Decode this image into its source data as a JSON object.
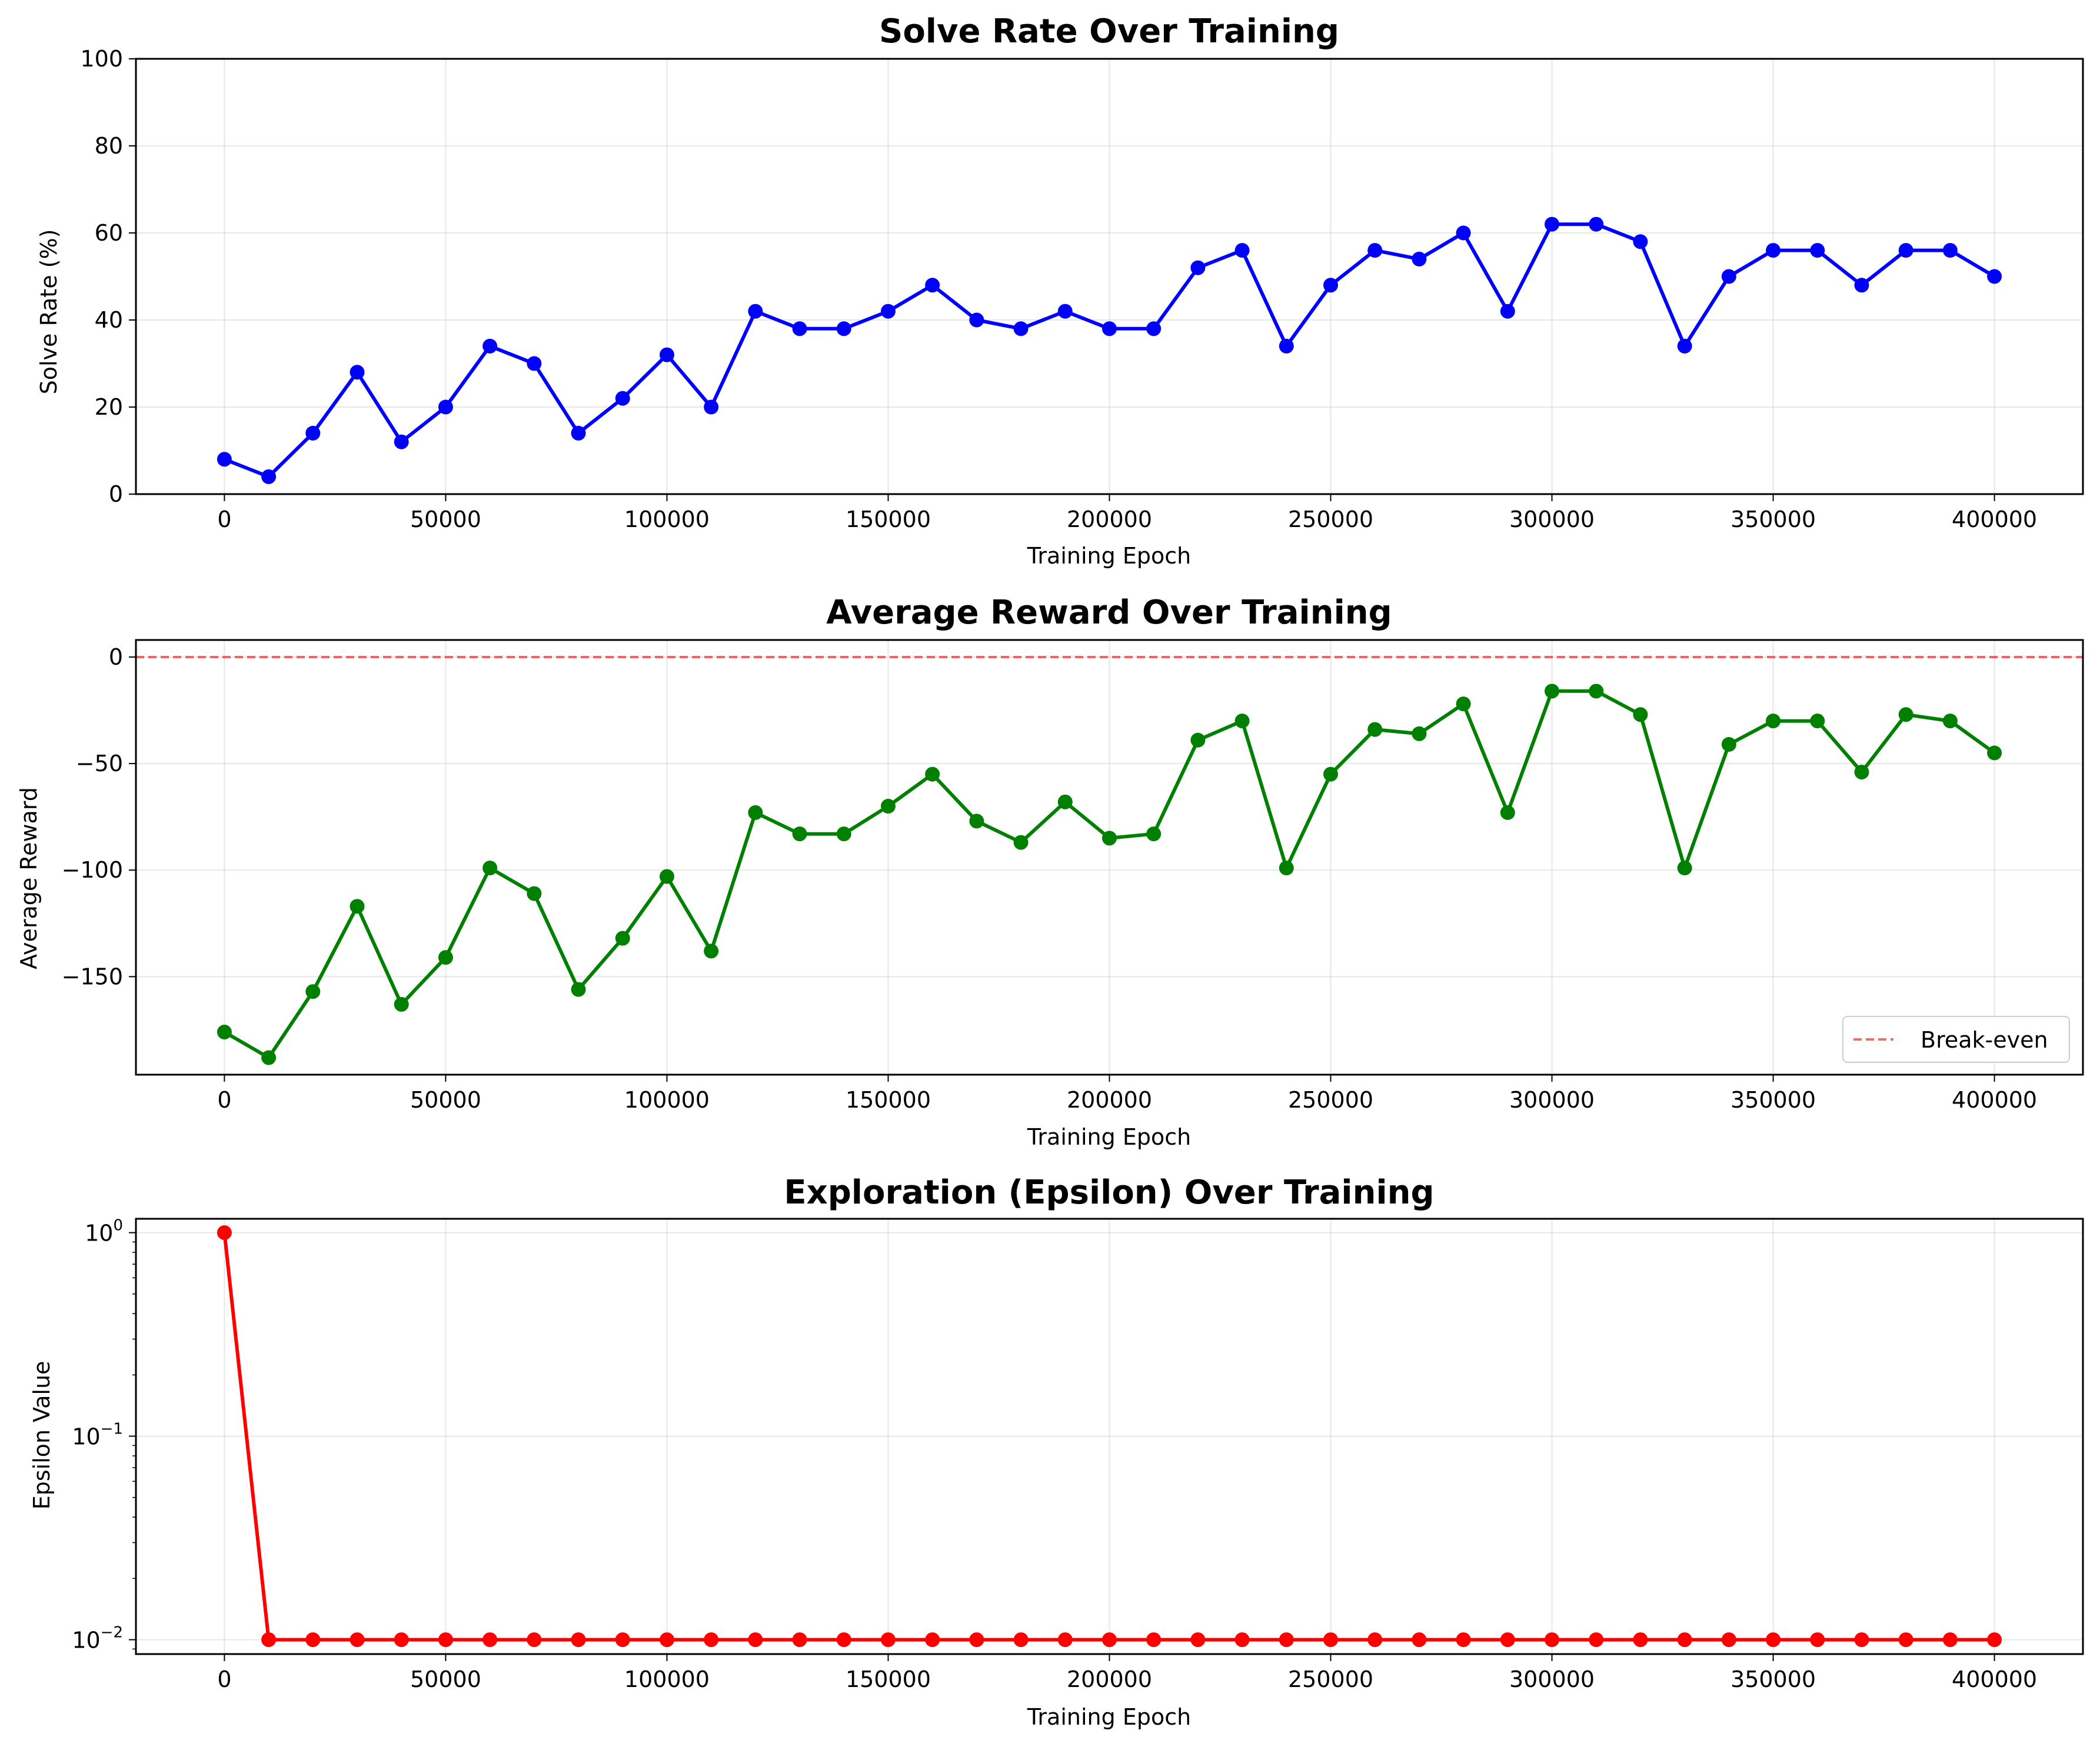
{
  "chart_data": [
    {
      "type": "line",
      "title": "Solve Rate Over Training",
      "xlabel": "Training Epoch",
      "ylabel": "Solve Rate (%)",
      "xlim": [
        -20000,
        420000
      ],
      "ylim": [
        0,
        100
      ],
      "x_scale": "linear",
      "y_scale": "linear",
      "grid": true,
      "xticks": [
        "0",
        "50000",
        "100000",
        "150000",
        "200000",
        "250000",
        "300000",
        "350000",
        "400000"
      ],
      "yticks": [
        "0",
        "20",
        "40",
        "60",
        "80",
        "100"
      ],
      "x": [
        0,
        10000,
        20000,
        30000,
        40000,
        50000,
        60000,
        70000,
        80000,
        90000,
        100000,
        110000,
        120000,
        130000,
        140000,
        150000,
        160000,
        170000,
        180000,
        190000,
        200000,
        210000,
        220000,
        230000,
        240000,
        250000,
        260000,
        270000,
        280000,
        290000,
        300000,
        310000,
        320000,
        330000,
        340000,
        350000,
        360000,
        370000,
        380000,
        390000,
        400000
      ],
      "series": [
        {
          "color": "#0000ff",
          "values": [
            8,
            4,
            14,
            28,
            12,
            20,
            34,
            30,
            14,
            22,
            32,
            20,
            42,
            38,
            38,
            42,
            48,
            40,
            38,
            42,
            38,
            38,
            52,
            56,
            34,
            48,
            56,
            54,
            60,
            42,
            62,
            62,
            58,
            34,
            50,
            56,
            56,
            48,
            56,
            56,
            50
          ]
        }
      ]
    },
    {
      "type": "line",
      "title": "Average Reward Over Training",
      "xlabel": "Training Epoch",
      "ylabel": "Average Reward",
      "xlim": [
        -20000,
        420000
      ],
      "ylim": [
        -196,
        8
      ],
      "x_scale": "linear",
      "y_scale": "linear",
      "grid": true,
      "legend_position": "lower-right",
      "xticks": [
        "0",
        "50000",
        "100000",
        "150000",
        "200000",
        "250000",
        "300000",
        "350000",
        "400000"
      ],
      "yticks": [
        "0",
        "−50",
        "−100",
        "−150"
      ],
      "x": [
        0,
        10000,
        20000,
        30000,
        40000,
        50000,
        60000,
        70000,
        80000,
        90000,
        100000,
        110000,
        120000,
        130000,
        140000,
        150000,
        160000,
        170000,
        180000,
        190000,
        200000,
        210000,
        220000,
        230000,
        240000,
        250000,
        260000,
        270000,
        280000,
        290000,
        300000,
        310000,
        320000,
        330000,
        340000,
        350000,
        360000,
        370000,
        380000,
        390000,
        400000
      ],
      "series": [
        {
          "color": "#008000",
          "values": [
            -176,
            -188,
            -157,
            -117,
            -163,
            -141,
            -99,
            -111,
            -156,
            -132,
            -103,
            -138,
            -73,
            -83,
            -83,
            -70,
            -55,
            -77,
            -87,
            -68,
            -85,
            -83,
            -39,
            -30,
            -99,
            -55,
            -34,
            -36,
            -22,
            -73,
            -16,
            -16,
            -27,
            -99,
            -41,
            -30,
            -30,
            -54,
            -27,
            -30,
            -45
          ]
        }
      ],
      "reference_lines": [
        {
          "name": "Break-even",
          "y": 0,
          "color": "#ff0000",
          "style": "dashed"
        }
      ]
    },
    {
      "type": "line",
      "title": "Exploration (Epsilon) Over Training",
      "xlabel": "Training Epoch",
      "ylabel": "Epsilon Value",
      "xlim": [
        -20000,
        420000
      ],
      "ylim": [
        0.0085,
        1.17
      ],
      "x_scale": "linear",
      "y_scale": "log",
      "grid": true,
      "xticks": [
        "0",
        "50000",
        "100000",
        "150000",
        "200000",
        "250000",
        "300000",
        "350000",
        "400000"
      ],
      "yticks": [
        {
          "base": "10",
          "exp": "0"
        },
        {
          "base": "10",
          "exp": "−1"
        },
        {
          "base": "10",
          "exp": "−2"
        }
      ],
      "x": [
        0,
        10000,
        20000,
        30000,
        40000,
        50000,
        60000,
        70000,
        80000,
        90000,
        100000,
        110000,
        120000,
        130000,
        140000,
        150000,
        160000,
        170000,
        180000,
        190000,
        200000,
        210000,
        220000,
        230000,
        240000,
        250000,
        260000,
        270000,
        280000,
        290000,
        300000,
        310000,
        320000,
        330000,
        340000,
        350000,
        360000,
        370000,
        380000,
        390000,
        400000
      ],
      "series": [
        {
          "color": "#ff0000",
          "values": [
            1.0,
            0.01,
            0.01,
            0.01,
            0.01,
            0.01,
            0.01,
            0.01,
            0.01,
            0.01,
            0.01,
            0.01,
            0.01,
            0.01,
            0.01,
            0.01,
            0.01,
            0.01,
            0.01,
            0.01,
            0.01,
            0.01,
            0.01,
            0.01,
            0.01,
            0.01,
            0.01,
            0.01,
            0.01,
            0.01,
            0.01,
            0.01,
            0.01,
            0.01,
            0.01,
            0.01,
            0.01,
            0.01,
            0.01,
            0.01,
            0.01
          ]
        }
      ]
    }
  ]
}
